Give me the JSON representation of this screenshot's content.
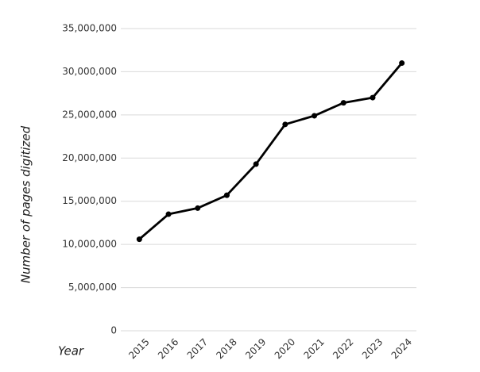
{
  "chart_data": {
    "type": "line",
    "x_label": "Year",
    "y_label": "Number of pages digitized",
    "categories": [
      "2015",
      "2016",
      "2017",
      "2018",
      "2019",
      "2020",
      "2021",
      "2022",
      "2023",
      "2024"
    ],
    "values": [
      10600000,
      13500000,
      14200000,
      15700000,
      19300000,
      23900000,
      24900000,
      26400000,
      27000000,
      31000000
    ],
    "color": "#000000",
    "ylim": [
      0,
      35000000
    ],
    "yticks": [
      0,
      {
        "value": 5000000,
        "label": "5,000,000"
      },
      {
        "value": 10000000,
        "label": "10,000,000"
      },
      {
        "value": 15000000,
        "label": "15,000,000"
      },
      {
        "value": 20000000,
        "label": "20,000,000"
      },
      {
        "value": 25000000,
        "label": "25,000,000"
      },
      {
        "value": 30000000,
        "label": "30,000,000"
      },
      {
        "value": 35000000,
        "label": "35,000,000"
      }
    ],
    "grid": true
  }
}
